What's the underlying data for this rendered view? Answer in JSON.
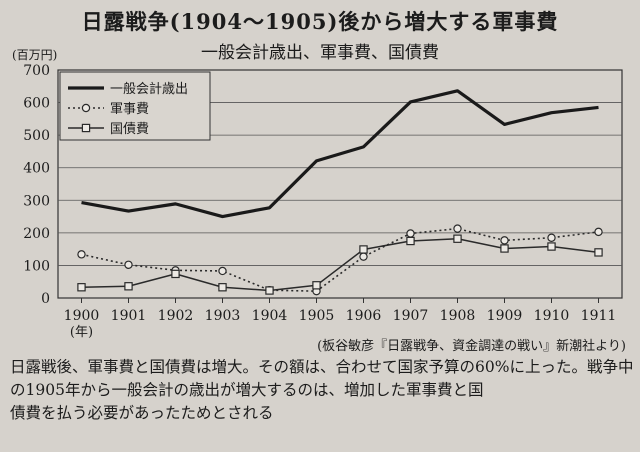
{
  "title": "日露戦争(1904〜1905)後から増大する軍事費",
  "subtitle": "一般会計歳出、軍事費、国債費",
  "unit_label": "(百万円)",
  "source": "(板谷敏彦『日露戦争、資金調達の戦い』新潮社より)",
  "caption": [
    "日露戦後、軍事費と国債費は増大。その額は、合わせて国家予算の60%に上った。戦争中の1905年から一般会計の歳出が増大するのは、増加した軍事費と国",
    "債費を払う必要があったためとされる"
  ],
  "chart_data": {
    "type": "line",
    "title": "一般会計歳出、軍事費、国債費",
    "ylabel": "(百万円)",
    "xlabel": "(年)",
    "x": [
      "1900",
      "1901",
      "1902",
      "1903",
      "1904",
      "1905",
      "1906",
      "1907",
      "1908",
      "1909",
      "1910",
      "1911"
    ],
    "ylim": [
      0,
      700
    ],
    "yticks": [
      0,
      100,
      200,
      300,
      400,
      500,
      600,
      700
    ],
    "grid": "horizontal",
    "legend_position": "top-left",
    "series": [
      {
        "name": "一般会計歳出",
        "style": "solid-thick",
        "values": [
          293,
          267,
          289,
          250,
          277,
          421,
          464,
          602,
          636,
          533,
          569,
          585
        ]
      },
      {
        "name": "軍事費",
        "style": "dotted-circle",
        "values": [
          134,
          102,
          85,
          83,
          24,
          21,
          127,
          198,
          213,
          177,
          185,
          203
        ]
      },
      {
        "name": "国債費",
        "style": "solid-square",
        "values": [
          33,
          36,
          74,
          33,
          23,
          39,
          149,
          175,
          182,
          152,
          158,
          140
        ]
      }
    ]
  }
}
